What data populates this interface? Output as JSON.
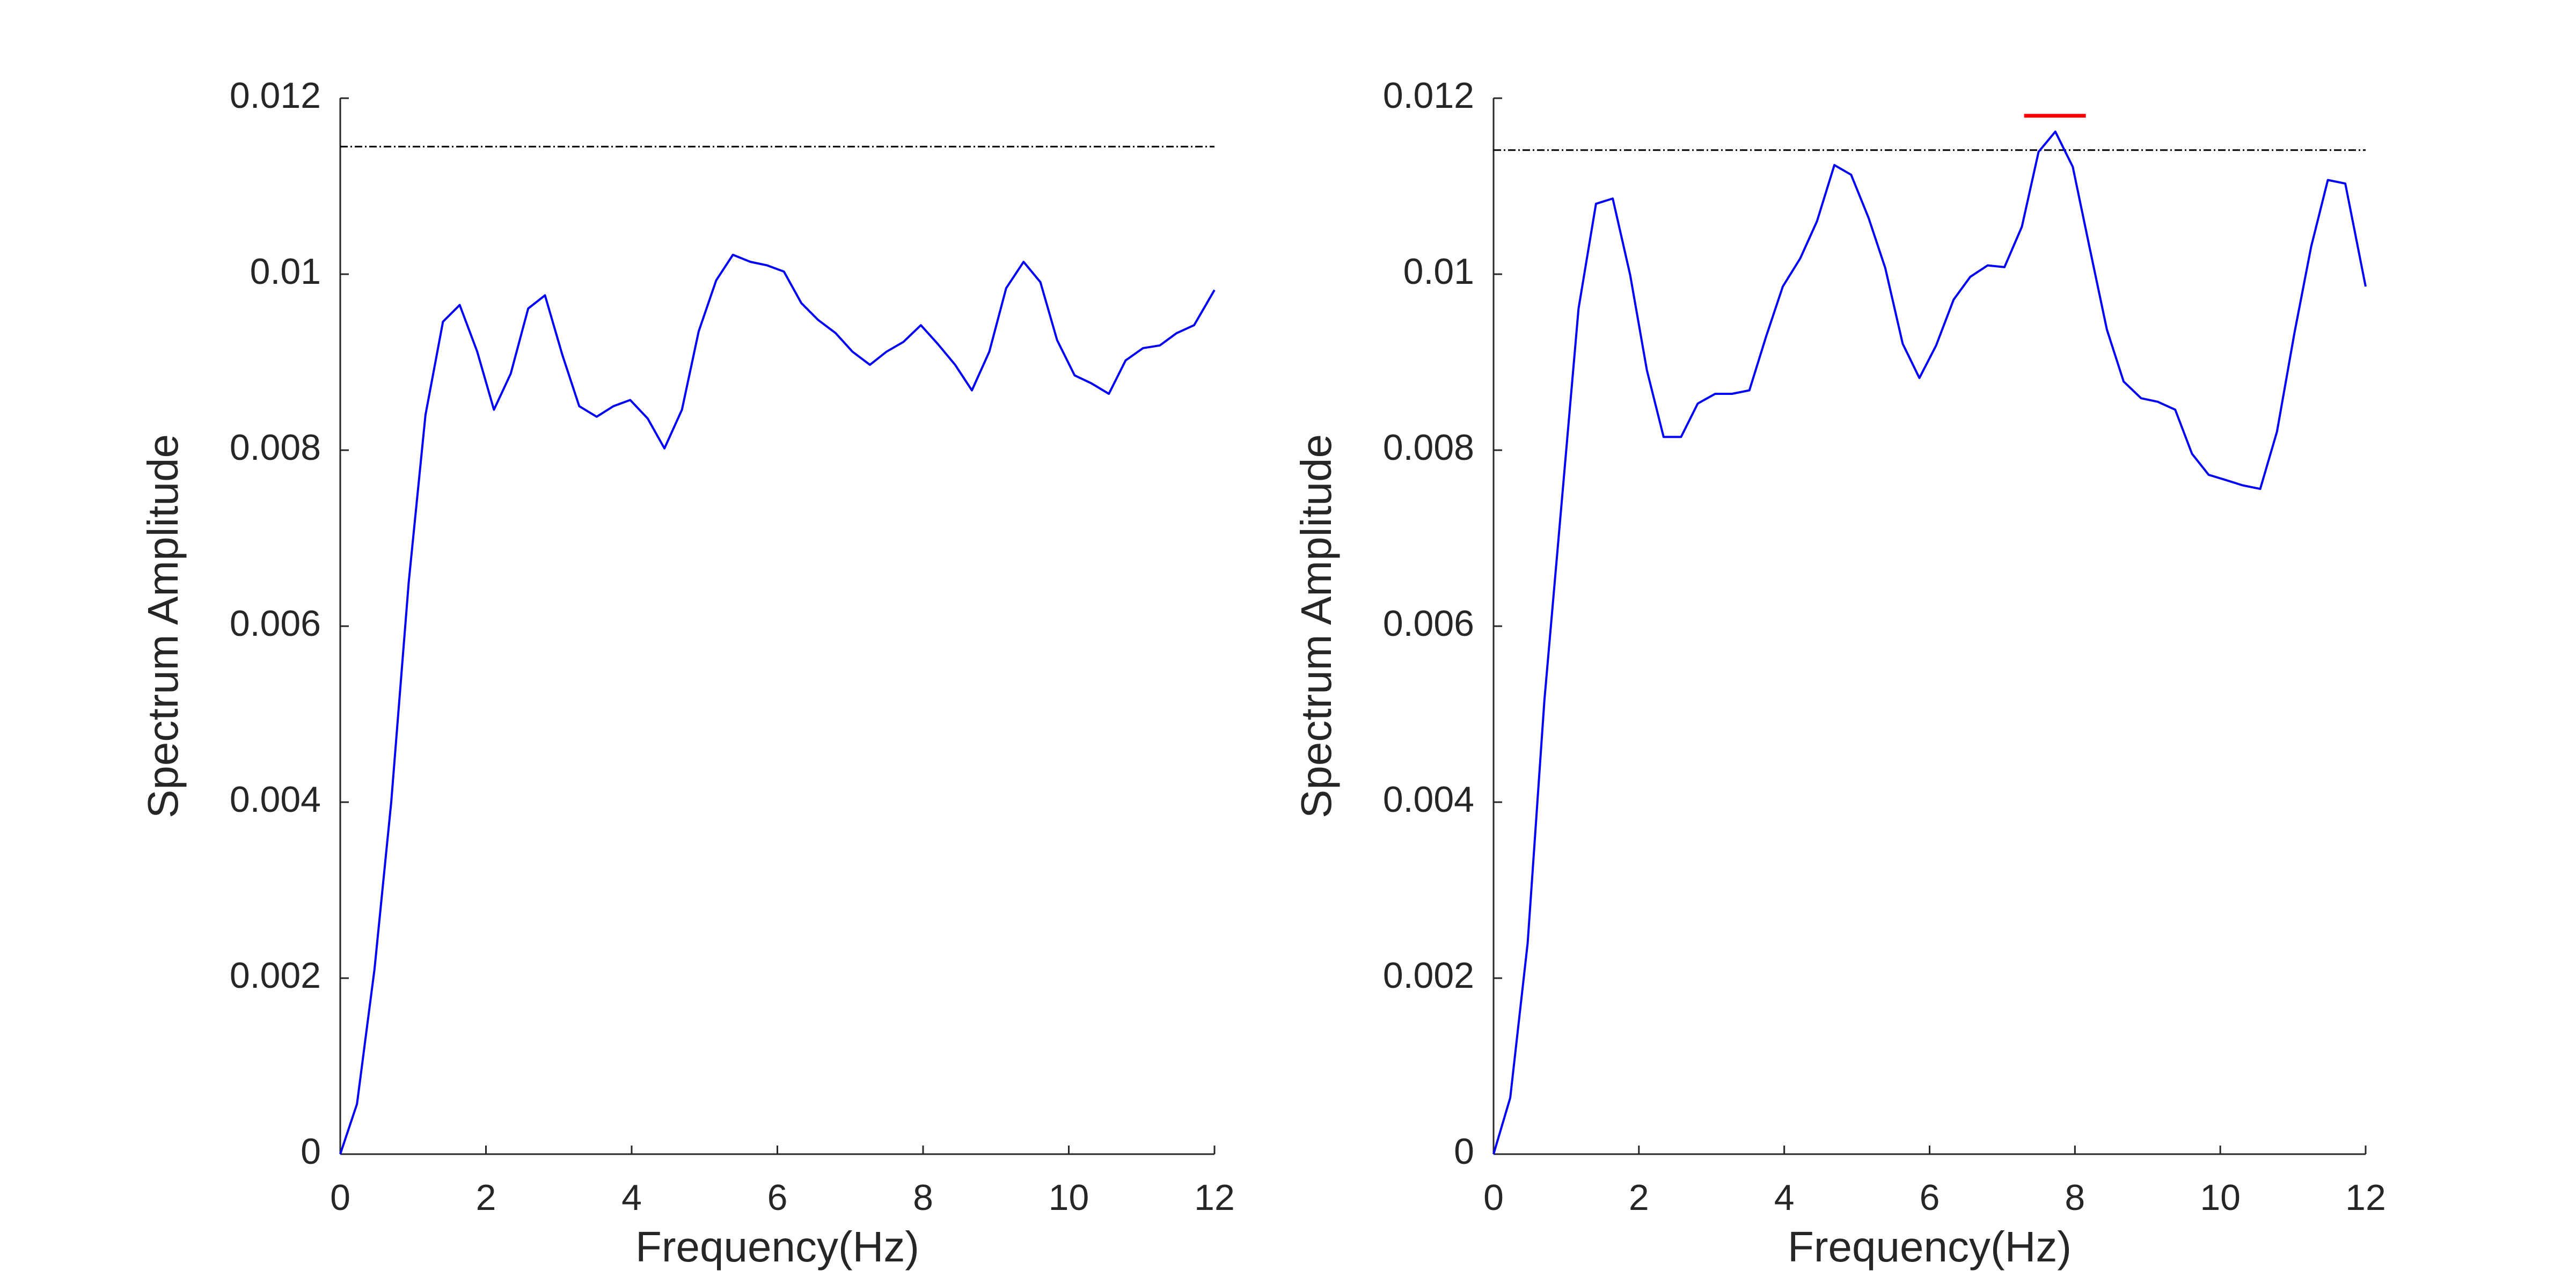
{
  "chart_data": [
    {
      "type": "line",
      "x": [
        0,
        0.23,
        0.47,
        0.7,
        0.94,
        1.17,
        1.41,
        1.64,
        1.88,
        2.11,
        2.34,
        2.58,
        2.81,
        3.05,
        3.28,
        3.52,
        3.75,
        3.98,
        4.22,
        4.45,
        4.69,
        4.92,
        5.16,
        5.39,
        5.63,
        5.86,
        6.09,
        6.33,
        6.56,
        6.8,
        7.03,
        7.27,
        7.5,
        7.73,
        7.97,
        8.2,
        8.44,
        8.67,
        8.91,
        9.14,
        9.38,
        9.61,
        9.84,
        10.08,
        10.31,
        10.55,
        10.78,
        11.02,
        11.25,
        11.48,
        11.72,
        12
      ],
      "values": [
        0,
        0.00057,
        0.0021,
        0.004,
        0.0065,
        0.0084,
        0.00946,
        0.00965,
        0.00912,
        0.00846,
        0.00887,
        0.00961,
        0.00976,
        0.00908,
        0.0085,
        0.00838,
        0.0085,
        0.00857,
        0.00836,
        0.00802,
        0.00846,
        0.00935,
        0.00993,
        0.01022,
        0.01014,
        0.0101,
        0.01003,
        0.00967,
        0.00948,
        0.00933,
        0.00912,
        0.00897,
        0.00912,
        0.00923,
        0.00942,
        0.00921,
        0.00897,
        0.00868,
        0.00912,
        0.00984,
        0.01014,
        0.00991,
        0.00925,
        0.00885,
        0.00876,
        0.00864,
        0.00902,
        0.00916,
        0.00919,
        0.00933,
        0.00942,
        0.00982
      ],
      "color": "#0000ff",
      "reference_line": {
        "y": 0.01145,
        "color": "#000000",
        "style": "dash-dot"
      },
      "xlabel": "Frequency(Hz)",
      "ylabel": "Spectrum Amplitude",
      "xlim": [
        0,
        12
      ],
      "xticks": [
        0,
        2,
        4,
        6,
        8,
        10,
        12
      ],
      "ylim": [
        0,
        0.012
      ],
      "yticks": [
        0,
        0.002,
        0.004,
        0.006,
        0.008,
        0.01,
        0.012
      ]
    },
    {
      "type": "line",
      "x": [
        0,
        0.23,
        0.47,
        0.7,
        0.94,
        1.17,
        1.41,
        1.64,
        1.88,
        2.11,
        2.34,
        2.58,
        2.81,
        3.05,
        3.28,
        3.52,
        3.75,
        3.98,
        4.22,
        4.45,
        4.69,
        4.92,
        5.16,
        5.39,
        5.63,
        5.86,
        6.09,
        6.33,
        6.56,
        6.8,
        7.03,
        7.27,
        7.5,
        7.73,
        7.97,
        8.2,
        8.44,
        8.67,
        8.91,
        9.14,
        9.38,
        9.61,
        9.84,
        10.08,
        10.31,
        10.55,
        10.78,
        11.02,
        11.25,
        11.48,
        11.72,
        12
      ],
      "values": [
        0,
        0.00064,
        0.0024,
        0.00516,
        0.00743,
        0.00961,
        0.0108,
        0.01086,
        0.00999,
        0.00891,
        0.00815,
        0.00815,
        0.00853,
        0.00864,
        0.00864,
        0.00868,
        0.00929,
        0.00986,
        0.01018,
        0.0106,
        0.01124,
        0.01113,
        0.01064,
        0.01007,
        0.00921,
        0.00882,
        0.00919,
        0.00971,
        0.00997,
        0.0101,
        0.01008,
        0.01054,
        0.01139,
        0.01162,
        0.01122,
        0.01031,
        0.00937,
        0.00878,
        0.00859,
        0.00855,
        0.00846,
        0.00796,
        0.00772,
        0.00766,
        0.0076,
        0.00756,
        0.00821,
        0.00933,
        0.01031,
        0.01107,
        0.01103,
        0.00986
      ],
      "color": "#0000ff",
      "reference_line": {
        "y": 0.01141,
        "color": "#000000",
        "style": "dash-dot"
      },
      "significance_bar": {
        "x": [
          7.3,
          8.15
        ],
        "y": 0.0118,
        "color": "#ff0000"
      },
      "xlabel": "Frequency(Hz)",
      "ylabel": "Spectrum Amplitude",
      "xlim": [
        0,
        12
      ],
      "xticks": [
        0,
        2,
        4,
        6,
        8,
        10,
        12
      ],
      "ylim": [
        0,
        0.012
      ],
      "yticks": [
        0,
        0.002,
        0.004,
        0.006,
        0.008,
        0.01,
        0.012
      ]
    }
  ]
}
